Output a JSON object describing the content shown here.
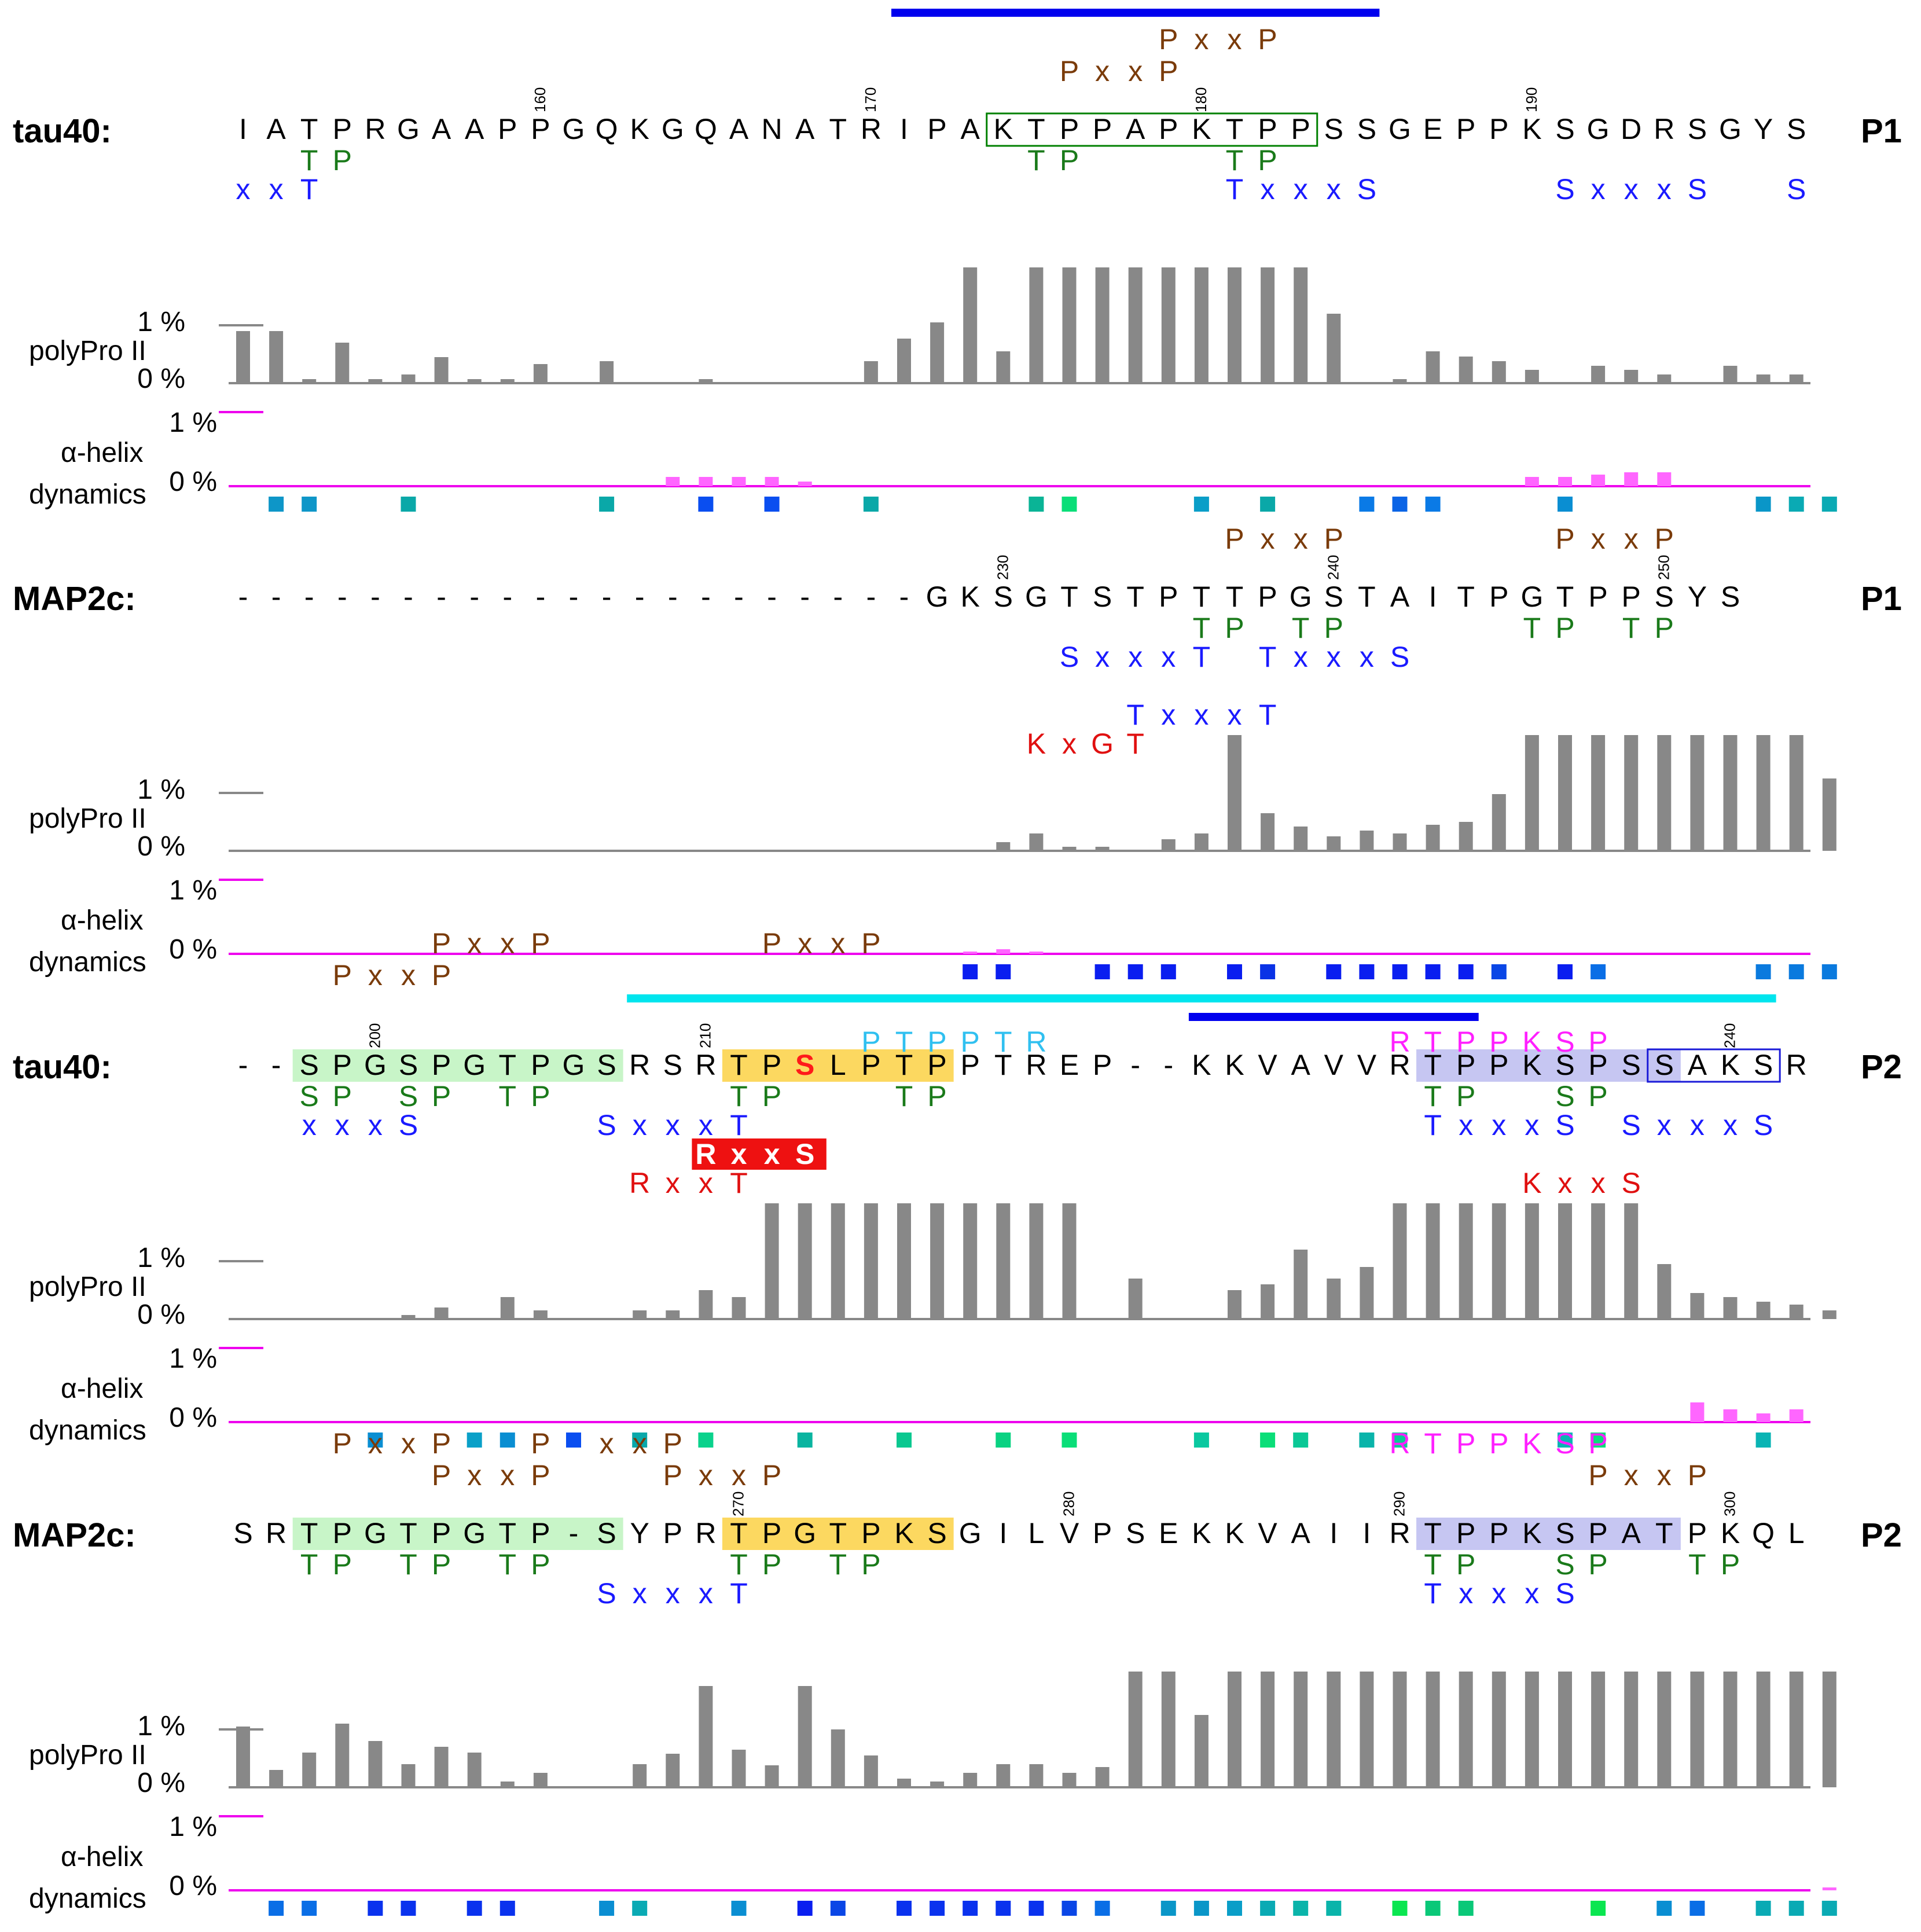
{
  "panels": [
    {
      "protein": "tau40:",
      "part": "P1",
      "sequence": "IATPRGAAPPGQKGQANATRIPAKTPPAPKTPPSSGEPPKSGDRSGYS",
      "numbering": {
        "start": 151,
        "marks": [
          160,
          170,
          180,
          190
        ]
      },
      "bars": [
        {
          "color": "#0000ee",
          "from": 20,
          "to": 34
        }
      ],
      "highlights": [
        {
          "kind": "box",
          "color": "#008000",
          "from": 23,
          "to": 32
        }
      ],
      "motifs": {
        "above": [
          [
            {
              "text": "PxxP",
              "color": "#7a3b0a",
              "at": 28
            }
          ],
          [
            {
              "text": "PxxP",
              "color": "#7a3b0a",
              "at": 25
            }
          ]
        ],
        "below": [
          [
            {
              "text": "TP",
              "color": "#1a7a1a",
              "at": 2
            },
            {
              "text": "TP",
              "color": "#1a7a1a",
              "at": 24
            },
            {
              "text": "TP",
              "color": "#1a7a1a",
              "at": 30
            }
          ],
          [
            {
              "text": "xxT",
              "color": "#1a1aff",
              "at": 0
            },
            {
              "text": "TxxxS",
              "color": "#1a1aff",
              "at": 30
            },
            {
              "text": "SxxxS",
              "color": "#1a1aff",
              "at": 40
            },
            {
              "text": "S",
              "color": "#1a1aff",
              "at": 47
            }
          ]
        ]
      },
      "polypro": [
        0.9,
        0.9,
        0.07,
        0.7,
        0.07,
        0.15,
        0.45,
        0.07,
        0.07,
        0.33,
        0,
        0.38,
        0,
        0,
        0.07,
        0,
        0,
        0,
        0,
        0.38,
        0.77,
        1.05,
        2,
        0.55,
        2,
        2,
        2,
        2,
        2,
        2,
        2,
        2,
        2,
        1.2,
        0,
        0.07,
        0.55,
        0.46,
        0.38,
        0.23,
        0,
        0.3,
        0.23,
        0.15,
        0,
        0.3,
        0.15,
        0.15
      ],
      "helix": [
        0,
        0,
        0,
        0,
        0,
        0,
        0,
        0,
        0,
        0,
        0,
        0,
        0,
        0.16,
        0.16,
        0.16,
        0.16,
        0.08,
        0,
        0,
        0,
        0,
        0,
        0,
        0,
        0,
        0,
        0,
        0,
        0,
        0,
        0,
        0,
        0,
        0,
        0,
        0,
        0,
        0,
        0.16,
        0.16,
        0.2,
        0.24,
        0.24,
        0,
        0,
        0,
        0
      ],
      "dynamics": [
        null,
        "#0e96c8",
        "#0e96c8",
        null,
        null,
        "#0aa8a8",
        null,
        null,
        null,
        null,
        null,
        "#0aa8a8",
        null,
        null,
        "#0a4ef0",
        null,
        "#0a4ef0",
        null,
        null,
        "#0aa8a8",
        null,
        null,
        null,
        null,
        "#0ab496",
        "#0ade78",
        null,
        null,
        null,
        "#0a9ec8",
        null,
        "#0aa8a8",
        null,
        null,
        "#0a7ae6",
        "#0a64e6",
        "#0a7ae6",
        null,
        null,
        null,
        "#0a8ed2",
        null,
        null,
        null,
        null,
        null,
        "#0a96c8",
        "#0aaab4",
        "#0aaab4"
      ],
      "labels": {
        "helix_percent": "1 %",
        "zero_percent": "0 %",
        "polypro": "polyPro II",
        "helix": "α-helix",
        "dynamics": "dynamics",
        "polypro_percent": "1 %",
        "polypro_zero": "0 %"
      }
    },
    {
      "protein": "MAP2c:",
      "part": "P1",
      "sequence": "---------------------GKSGTSTPTTPGSTAITPGTPPSYS",
      "numbering": {
        "start": 228,
        "offset": 21,
        "marks": [
          230,
          240,
          250
        ]
      },
      "bars": [],
      "highlights": [],
      "motifs": {
        "above": [
          [
            {
              "text": "PxxP",
              "color": "#7a3b0a",
              "at": 30
            },
            {
              "text": "PxxP",
              "color": "#7a3b0a",
              "at": 40
            }
          ]
        ],
        "below": [
          [
            {
              "text": "TP",
              "color": "#1a7a1a",
              "at": 29
            },
            {
              "text": "TP",
              "color": "#1a7a1a",
              "at": 32
            },
            {
              "text": "TP",
              "color": "#1a7a1a",
              "at": 39
            },
            {
              "text": "TP",
              "color": "#1a7a1a",
              "at": 42
            }
          ],
          [
            {
              "text": "SxxxT",
              "color": "#1a1aff",
              "at": 25
            },
            {
              "text": "TxxxS",
              "color": "#1a1aff",
              "at": 31
            }
          ],
          [],
          [
            {
              "text": "TxxxT",
              "color": "#1a1aff",
              "at": 27
            }
          ],
          [
            {
              "text": "KxGT",
              "color": "#e01010",
              "at": 24
            }
          ]
        ]
      },
      "polypro": [
        0,
        0,
        0,
        0,
        0,
        0,
        0,
        0,
        0,
        0,
        0,
        0,
        0,
        0,
        0,
        0,
        0,
        0,
        0,
        0,
        0,
        0,
        0,
        0.15,
        0.3,
        0.07,
        0.07,
        0,
        0.2,
        0.3,
        2,
        0.65,
        0.42,
        0.25,
        0.35,
        0.3,
        0.45,
        0.5,
        0.98,
        2,
        2,
        2,
        2,
        2,
        2,
        2,
        2,
        2,
        1.25
      ],
      "helix": [
        0,
        0,
        0,
        0,
        0,
        0,
        0,
        0,
        0,
        0,
        0,
        0,
        0,
        0,
        0,
        0,
        0,
        0,
        0,
        0,
        0,
        0,
        0.04,
        0.08,
        0.04,
        0,
        0,
        0,
        0,
        0,
        0,
        0,
        0,
        0,
        0,
        0,
        0,
        0,
        0,
        0,
        0,
        0,
        0,
        0,
        0,
        0,
        0,
        0,
        0
      ],
      "dynamics": [
        null,
        null,
        null,
        null,
        null,
        null,
        null,
        null,
        null,
        null,
        null,
        null,
        null,
        null,
        null,
        null,
        null,
        null,
        null,
        null,
        null,
        null,
        "#0a1ef0",
        "#0a1ef0",
        null,
        null,
        "#0a1ef0",
        "#0a1ef0",
        "#0a1ef0",
        null,
        "#0a1ef0",
        "#0a32e6",
        null,
        "#0a1ef0",
        "#0a1ef0",
        "#0a1ef0",
        "#0a1ef0",
        "#0a1ef0",
        "#0a46e6",
        null,
        "#0a1ef0",
        "#0a6ee6",
        null,
        null,
        null,
        null,
        "#0a7ade",
        "#0a7ade",
        "#0a7ade"
      ],
      "labels": {
        "helix_percent": "1 %",
        "zero_percent": "0 %",
        "polypro": "polyPro II",
        "helix": "α-helix",
        "dynamics": "dynamics",
        "polypro_percent": "1 %",
        "polypro_zero": "0 %"
      }
    },
    {
      "protein": "tau40:",
      "part": "P2",
      "sequence": "--SPGSPGTPGSRSRTPSLPTPPTREP--KKVAVVRTPPKSPSSAKSR",
      "numbering": {
        "start": 198,
        "marks": [
          200,
          210,
          240
        ]
      },
      "bars": [
        {
          "color": "#00e5ee",
          "from": 12,
          "to": 46
        },
        {
          "color": "#0000ee",
          "from": 29,
          "to": 37
        }
      ],
      "highlights": [
        {
          "kind": "fill",
          "color": "#c8f5c8",
          "from": 2,
          "to": 11
        },
        {
          "kind": "fill",
          "color": "#fcd860",
          "from": 15,
          "to": 21
        },
        {
          "kind": "fill",
          "color": "#c6c6f2",
          "from": 36,
          "to": 43
        },
        {
          "kind": "box",
          "color": "#1a1ad8",
          "from": 43,
          "to": 46
        },
        {
          "kind": "red",
          "color": "#ff0000",
          "from": 17,
          "to": 17
        }
      ],
      "motifs": {
        "above": [
          [
            {
              "text": "PxxP",
              "color": "#7a3b0a",
              "at": 6
            },
            {
              "text": "PxxP",
              "color": "#7a3b0a",
              "at": 16
            }
          ],
          [
            {
              "text": "PxxP",
              "color": "#7a3b0a",
              "at": 3
            }
          ],
          [
            {
              "text": "PTPPTR",
              "color": "#30c0f0",
              "at": 19
            },
            {
              "text": "RTPPKSP",
              "color": "#ff20ff",
              "at": 35
            }
          ]
        ],
        "below": [
          [
            {
              "text": "SP",
              "color": "#1a7a1a",
              "at": 2
            },
            {
              "text": "SP",
              "color": "#1a7a1a",
              "at": 5
            },
            {
              "text": "TP",
              "color": "#1a7a1a",
              "at": 8
            },
            {
              "text": "TP",
              "color": "#1a7a1a",
              "at": 15
            },
            {
              "text": "TP",
              "color": "#1a7a1a",
              "at": 20
            },
            {
              "text": "TP",
              "color": "#1a7a1a",
              "at": 36
            },
            {
              "text": "SP",
              "color": "#1a7a1a",
              "at": 40
            }
          ],
          [
            {
              "text": "xxxS",
              "color": "#1a1aff",
              "at": 2
            },
            {
              "text": "SxxxT",
              "color": "#1a1aff",
              "at": 11
            },
            {
              "text": "TxxxS",
              "color": "#1a1aff",
              "at": 36
            },
            {
              "text": "SxxxS",
              "color": "#1a1aff",
              "at": 42
            }
          ],
          [
            {
              "text": "RxxS",
              "color": "#ffffff",
              "at": 14,
              "boxed": true
            }
          ],
          [
            {
              "text": "RxxT",
              "color": "#e01010",
              "at": 12
            },
            {
              "text": "KxxS",
              "color": "#e01010",
              "at": 39
            }
          ]
        ]
      },
      "polypro": [
        0,
        0,
        0,
        0,
        0,
        0.07,
        0.2,
        0,
        0.38,
        0.15,
        0,
        0,
        0.15,
        0.15,
        0.5,
        0.38,
        2,
        2,
        2,
        2,
        2,
        2,
        2,
        2,
        2,
        2,
        0,
        0.7,
        0,
        0,
        0.5,
        0.6,
        1.2,
        0.7,
        0.9,
        2,
        2,
        2,
        2,
        2,
        2,
        2,
        2,
        0.95,
        0.45,
        0.38,
        0.3,
        0.25,
        0.15
      ],
      "helix": [
        0,
        0,
        0,
        0,
        0,
        0,
        0,
        0,
        0,
        0,
        0,
        0,
        0,
        0,
        0,
        0,
        0,
        0,
        0,
        0,
        0,
        0,
        0,
        0,
        0,
        0,
        0,
        0,
        0,
        0,
        0,
        0,
        0,
        0,
        0,
        0,
        0,
        0,
        0,
        0,
        0,
        0,
        0,
        0,
        0.34,
        0.22,
        0.15,
        0.22,
        0
      ],
      "dynamics": [
        null,
        null,
        null,
        null,
        "#0a8ed2",
        null,
        null,
        "#0aa0c8",
        "#0a8ed2",
        null,
        "#0a4ef0",
        null,
        "#0aa8aa",
        null,
        "#0ad28c",
        null,
        null,
        "#0ab4a0",
        null,
        null,
        "#0ac890",
        null,
        null,
        "#0ad282",
        null,
        "#0ade78",
        null,
        null,
        null,
        "#0ac8a0",
        null,
        "#0ade78",
        "#0ac896",
        null,
        "#0ab4aa",
        "#0ac896",
        null,
        null,
        null,
        null,
        "#0ab4b4",
        "#0ade78",
        null,
        null,
        null,
        null,
        "#0ab4b4",
        null,
        null
      ],
      "labels": {
        "helix_percent": "1 %",
        "zero_percent": "0 %",
        "polypro": "polyPro II",
        "helix": "α-helix",
        "dynamics": "dynamics",
        "polypro_percent": "1 %",
        "polypro_zero": "0 %"
      }
    },
    {
      "protein": "MAP2c:",
      "part": "P2",
      "sequence": "SRTPGTPGTP-SYPRTPGTPKSGILVPSEKKVAIIRTPPKSPATPKQL",
      "numbering": {
        "start": 256,
        "marks": [
          270,
          280,
          290,
          300
        ],
        "gaps": [
          10
        ]
      },
      "bars": [],
      "highlights": [
        {
          "kind": "fill",
          "color": "#c8f5c8",
          "from": 2,
          "to": 11
        },
        {
          "kind": "fill",
          "color": "#fcd860",
          "from": 15,
          "to": 21
        },
        {
          "kind": "fill",
          "color": "#c6c6f2",
          "from": 36,
          "to": 43
        }
      ],
      "motifs": {
        "above": [
          [
            {
              "text": "PxxP",
              "color": "#7a3b0a",
              "at": 3
            },
            {
              "text": "P",
              "color": "#7a3b0a",
              "at": 9
            },
            {
              "text": "xxP",
              "color": "#7a3b0a",
              "at": 11
            },
            {
              "text": "RTPPKSP",
              "color": "#ff20ff",
              "at": 35
            }
          ],
          [
            {
              "text": "PxxP",
              "color": "#7a3b0a",
              "at": 6
            },
            {
              "text": "PxxP",
              "color": "#7a3b0a",
              "at": 13
            },
            {
              "text": "PxxP",
              "color": "#7a3b0a",
              "at": 41
            }
          ]
        ],
        "below": [
          [
            {
              "text": "TP",
              "color": "#1a7a1a",
              "at": 2
            },
            {
              "text": "TP",
              "color": "#1a7a1a",
              "at": 5
            },
            {
              "text": "TP",
              "color": "#1a7a1a",
              "at": 8
            },
            {
              "text": "TP",
              "color": "#1a7a1a",
              "at": 15
            },
            {
              "text": "TP",
              "color": "#1a7a1a",
              "at": 18
            },
            {
              "text": "TP",
              "color": "#1a7a1a",
              "at": 36
            },
            {
              "text": "SP",
              "color": "#1a7a1a",
              "at": 40
            },
            {
              "text": "TP",
              "color": "#1a7a1a",
              "at": 44
            }
          ],
          [
            {
              "text": "SxxxT",
              "color": "#1a1aff",
              "at": 11
            },
            {
              "text": "TxxxS",
              "color": "#1a1aff",
              "at": 36
            }
          ]
        ]
      },
      "polypro": [
        1.05,
        0.3,
        0.6,
        1.1,
        0.8,
        0.4,
        0.7,
        0.6,
        0.1,
        0.25,
        0,
        0,
        0.4,
        0.58,
        1.75,
        0.65,
        0.38,
        1.75,
        1,
        0.55,
        0.15,
        0.1,
        0.25,
        0.4,
        0.4,
        0.25,
        0.35,
        2,
        2,
        1.25,
        2,
        2,
        2,
        2,
        2,
        2,
        2,
        2,
        2,
        2,
        2,
        2,
        2,
        2,
        2,
        2,
        2,
        2,
        2
      ],
      "helix": [
        0,
        0,
        0,
        0,
        0,
        0,
        0,
        0,
        0,
        0,
        0,
        0,
        0,
        0,
        0,
        0,
        0,
        0,
        0,
        0,
        0,
        0,
        0,
        0,
        0,
        0,
        0,
        0,
        0,
        0,
        0,
        0,
        0,
        0,
        0,
        0,
        0,
        0,
        0,
        0,
        0,
        0,
        0,
        0,
        0,
        0,
        0,
        0,
        0.05
      ],
      "dynamics": [
        null,
        "#0a6ee6",
        "#0a6ee6",
        null,
        "#0a32ee",
        "#0a32ee",
        null,
        "#0a32ee",
        "#0a32ee",
        null,
        null,
        "#0a8ed2",
        "#0aaab4",
        null,
        null,
        "#0a8ed2",
        null,
        "#0a1ef0",
        "#0a46e6",
        null,
        "#0a32ee",
        "#0a32ee",
        "#0a32ee",
        "#0a32ee",
        "#0a32ee",
        "#0a46e6",
        "#0a6ee6",
        null,
        "#0a96c8",
        "#0a96c8",
        "#0a9ec8",
        "#0aaab4",
        "#0ab4aa",
        "#0ab4aa",
        null,
        "#0ae650",
        "#0ac878",
        "#0ac878",
        null,
        null,
        null,
        "#0ae650",
        null,
        "#0a8ed2",
        "#0a6ee6",
        null,
        "#0aaab4",
        "#0aaab4",
        "#0aaab4"
      ],
      "labels": {
        "helix_percent": "1 %",
        "zero_percent": "0 %",
        "polypro": "polyPro II",
        "helix": "α-helix",
        "dynamics": "dynamics",
        "polypro_percent": "1 %",
        "polypro_zero": "0 %"
      }
    }
  ]
}
